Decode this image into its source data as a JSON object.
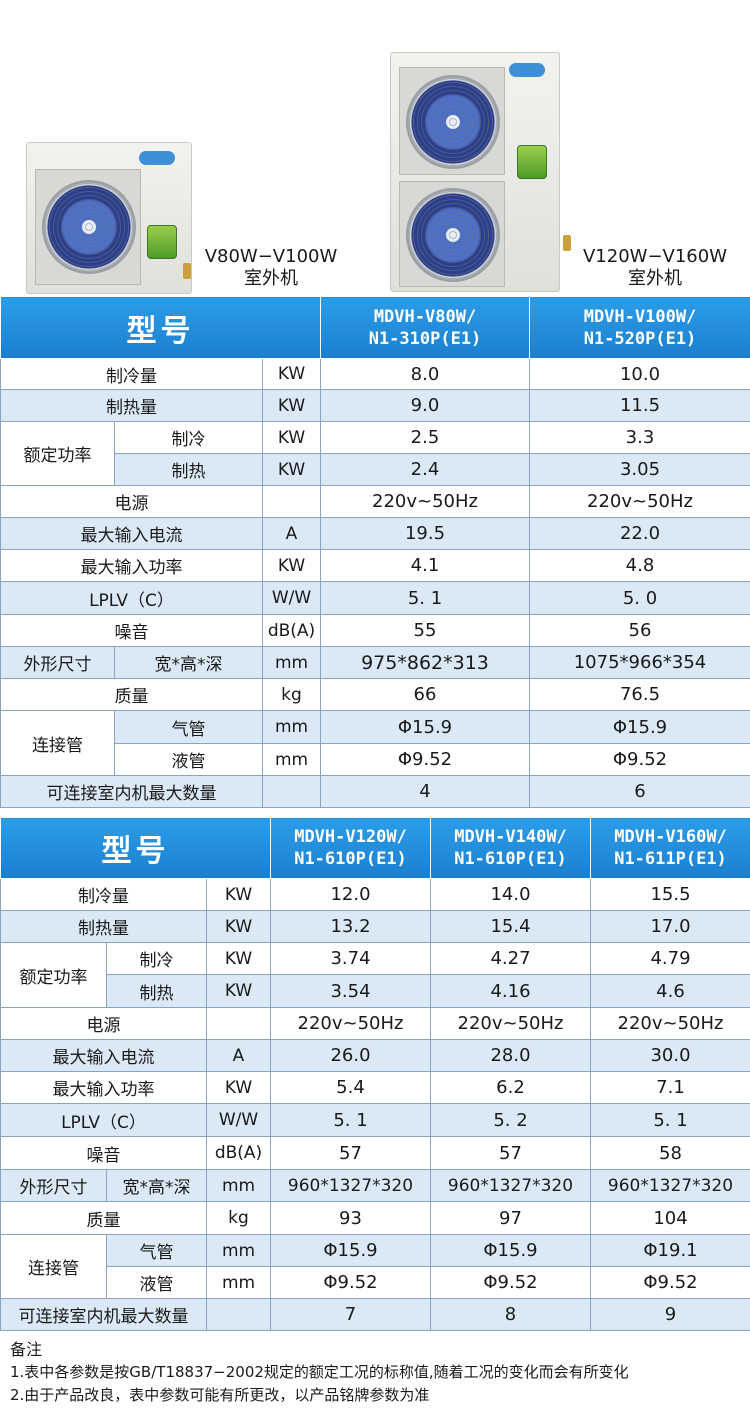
{
  "hero": {
    "small_label_line1": "V80W−V100W",
    "small_label_line2": "室外机",
    "large_label_line1": "V120W−V160W",
    "large_label_line2": "室外机"
  },
  "table1": {
    "header_title": "型号",
    "models": [
      {
        "line1": "MDVH-V80W/",
        "line2": "N1-310P(E1)"
      },
      {
        "line1": "MDVH-V100W/",
        "line2": "N1-520P(E1)"
      }
    ],
    "rows": {
      "cooling_capacity": {
        "label": "制冷量",
        "unit": "KW",
        "values": [
          "8.0",
          "10.0"
        ]
      },
      "heating_capacity": {
        "label": "制热量",
        "unit": "KW",
        "values": [
          "9.0",
          "11.5"
        ]
      },
      "rated_power_label": "额定功率",
      "rated_cooling": {
        "label": "制冷",
        "unit": "KW",
        "values": [
          "2.5",
          "3.3"
        ]
      },
      "rated_heating": {
        "label": "制热",
        "unit": "KW",
        "values": [
          "2.4",
          "3.05"
        ]
      },
      "power_supply": {
        "label": "电源",
        "unit": "",
        "values": [
          "220v~50Hz",
          "220v~50Hz"
        ]
      },
      "max_current": {
        "label": "最大输入电流",
        "unit": "A",
        "values": [
          "19.5",
          "22.0"
        ]
      },
      "max_power": {
        "label": "最大输入功率",
        "unit": "KW",
        "values": [
          "4.1",
          "4.8"
        ]
      },
      "iplv": {
        "label": "LPLV（C）",
        "unit": "W/W",
        "values": [
          "5. 1",
          "5. 0"
        ]
      },
      "noise": {
        "label": "噪音",
        "unit": "dB(A)",
        "values": [
          "55",
          "56"
        ]
      },
      "dimensions": {
        "label": "外形尺寸",
        "sub": "宽*高*深",
        "unit": "mm",
        "values": [
          "975*862*313",
          "1075*966*354"
        ]
      },
      "weight": {
        "label": "质量",
        "unit": "kg",
        "values": [
          "66",
          "76.5"
        ]
      },
      "pipe_label": "连接管",
      "gas_pipe": {
        "label": "气管",
        "unit": "mm",
        "values": [
          "Φ15.9",
          "Φ15.9"
        ]
      },
      "liquid_pipe": {
        "label": "液管",
        "unit": "mm",
        "values": [
          "Φ9.52",
          "Φ9.52"
        ]
      },
      "max_indoor": {
        "label": "可连接室内机最大数量",
        "unit": "",
        "values": [
          "4",
          "6"
        ]
      }
    }
  },
  "table2": {
    "header_title": "型号",
    "models": [
      {
        "line1": "MDVH-V120W/",
        "line2": "N1-610P(E1)"
      },
      {
        "line1": "MDVH-V140W/",
        "line2": "N1-610P(E1)"
      },
      {
        "line1": "MDVH-V160W/",
        "line2": "N1-611P(E1)"
      }
    ],
    "rows": {
      "cooling_capacity": {
        "label": "制冷量",
        "unit": "KW",
        "values": [
          "12.0",
          "14.0",
          "15.5"
        ]
      },
      "heating_capacity": {
        "label": "制热量",
        "unit": "KW",
        "values": [
          "13.2",
          "15.4",
          "17.0"
        ]
      },
      "rated_power_label": "额定功率",
      "rated_cooling": {
        "label": "制冷",
        "unit": "KW",
        "values": [
          "3.74",
          "4.27",
          "4.79"
        ]
      },
      "rated_heating": {
        "label": "制热",
        "unit": "KW",
        "values": [
          "3.54",
          "4.16",
          "4.6"
        ]
      },
      "power_supply": {
        "label": "电源",
        "unit": "",
        "values": [
          "220v~50Hz",
          "220v~50Hz",
          "220v~50Hz"
        ]
      },
      "max_current": {
        "label": "最大输入电流",
        "unit": "A",
        "values": [
          "26.0",
          "28.0",
          "30.0"
        ]
      },
      "max_power": {
        "label": "最大输入功率",
        "unit": "KW",
        "values": [
          "5.4",
          "6.2",
          "7.1"
        ]
      },
      "iplv": {
        "label": "LPLV（C）",
        "unit": "W/W",
        "values": [
          "5. 1",
          "5. 2",
          "5. 1"
        ]
      },
      "noise": {
        "label": "噪音",
        "unit": "dB(A)",
        "values": [
          "57",
          "57",
          "58"
        ]
      },
      "dimensions": {
        "label": "外形尺寸",
        "sub": "宽*高*深",
        "unit": "mm",
        "values": [
          "960*1327*320",
          "960*1327*320",
          "960*1327*320"
        ]
      },
      "weight": {
        "label": "质量",
        "unit": "kg",
        "values": [
          "93",
          "97",
          "104"
        ]
      },
      "pipe_label": "连接管",
      "gas_pipe": {
        "label": "气管",
        "unit": "mm",
        "values": [
          "Φ15.9",
          "Φ15.9",
          "Φ19.1"
        ]
      },
      "liquid_pipe": {
        "label": "液管",
        "unit": "mm",
        "values": [
          "Φ9.52",
          "Φ9.52",
          "Φ9.52"
        ]
      },
      "max_indoor": {
        "label": "可连接室内机最大数量",
        "unit": "",
        "values": [
          "7",
          "8",
          "9"
        ]
      }
    }
  },
  "notes": {
    "title": "备注",
    "items": [
      "1.表中各参数是按GB/T18837−2002规定的额定工况的标称值,随着工况的变化而会有所变化",
      "2.由于产品改良，表中参数可能有所更改，以产品铭牌参数为准"
    ]
  }
}
